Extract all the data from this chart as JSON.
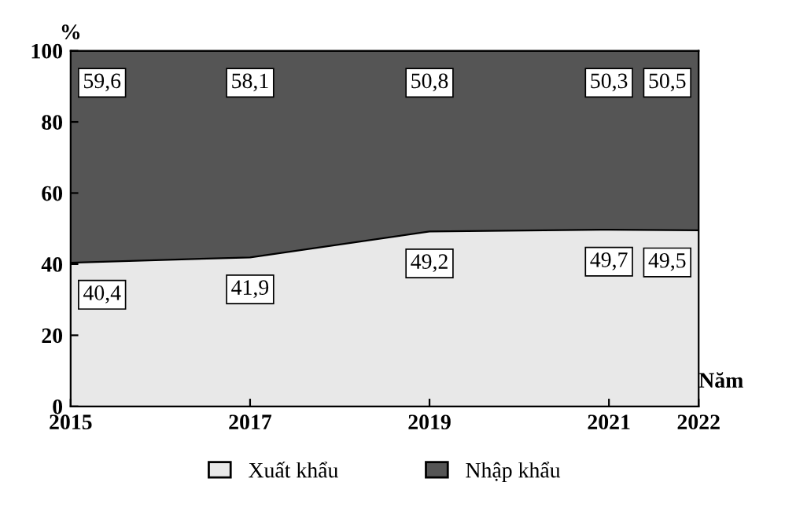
{
  "chart_data": {
    "type": "area",
    "stacked": true,
    "ylabel": "%",
    "xlabel": "Năm",
    "x": [
      2015,
      2017,
      2019,
      2021,
      2022
    ],
    "series": [
      {
        "name": "Xuất khẩu",
        "color": "#e8e8e8",
        "values": [
          40.4,
          41.9,
          49.2,
          49.7,
          49.5
        ],
        "value_labels": [
          "40,4",
          "41,9",
          "49,2",
          "49,7",
          "49,5"
        ]
      },
      {
        "name": "Nhập khẩu",
        "color": "#555555",
        "values": [
          59.6,
          58.1,
          50.8,
          50.3,
          50.5
        ],
        "value_labels": [
          "59,6",
          "58,1",
          "50,8",
          "50,3",
          "50,5"
        ]
      }
    ],
    "xlim": [
      2015,
      2022
    ],
    "xticks": [
      2015,
      2017,
      2019,
      2021,
      2022
    ],
    "ylim": [
      0,
      100
    ],
    "yticks": [
      0,
      20,
      40,
      60,
      80,
      100
    ],
    "grid": false,
    "legend": "bottom"
  }
}
